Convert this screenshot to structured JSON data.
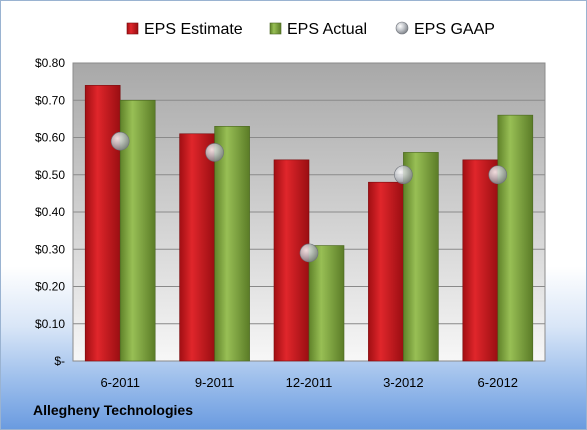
{
  "company": "Allegheny Technologies",
  "colors": {
    "estimate": "#c0171c",
    "actual": "#7da23e",
    "gaap": "#b8bcc2",
    "plot_top": "#a9a9a9",
    "plot_bottom": "#f5f5f5"
  },
  "chart_data": {
    "type": "bar",
    "categories": [
      "6-2011",
      "9-2011",
      "12-2011",
      "3-2012",
      "6-2012"
    ],
    "series": [
      {
        "name": "EPS Estimate",
        "kind": "bar",
        "values": [
          0.74,
          0.61,
          0.54,
          0.48,
          0.54
        ]
      },
      {
        "name": "EPS Actual",
        "kind": "bar",
        "values": [
          0.7,
          0.63,
          0.31,
          0.56,
          0.66
        ]
      },
      {
        "name": "EPS GAAP",
        "kind": "marker",
        "values": [
          0.59,
          0.56,
          0.29,
          0.5,
          0.5
        ]
      }
    ],
    "y_ticks": [
      {
        "value": 0.8,
        "label": "$0.80"
      },
      {
        "value": 0.7,
        "label": "$0.70"
      },
      {
        "value": 0.6,
        "label": "$0.60"
      },
      {
        "value": 0.5,
        "label": "$0.50"
      },
      {
        "value": 0.4,
        "label": "$0.40"
      },
      {
        "value": 0.3,
        "label": "$0.30"
      },
      {
        "value": 0.2,
        "label": "$0.20"
      },
      {
        "value": 0.1,
        "label": "$0.10"
      },
      {
        "value": 0.0,
        "label": "$-"
      }
    ],
    "ylim": [
      0,
      0.8
    ],
    "grid": true,
    "legend": "top"
  }
}
